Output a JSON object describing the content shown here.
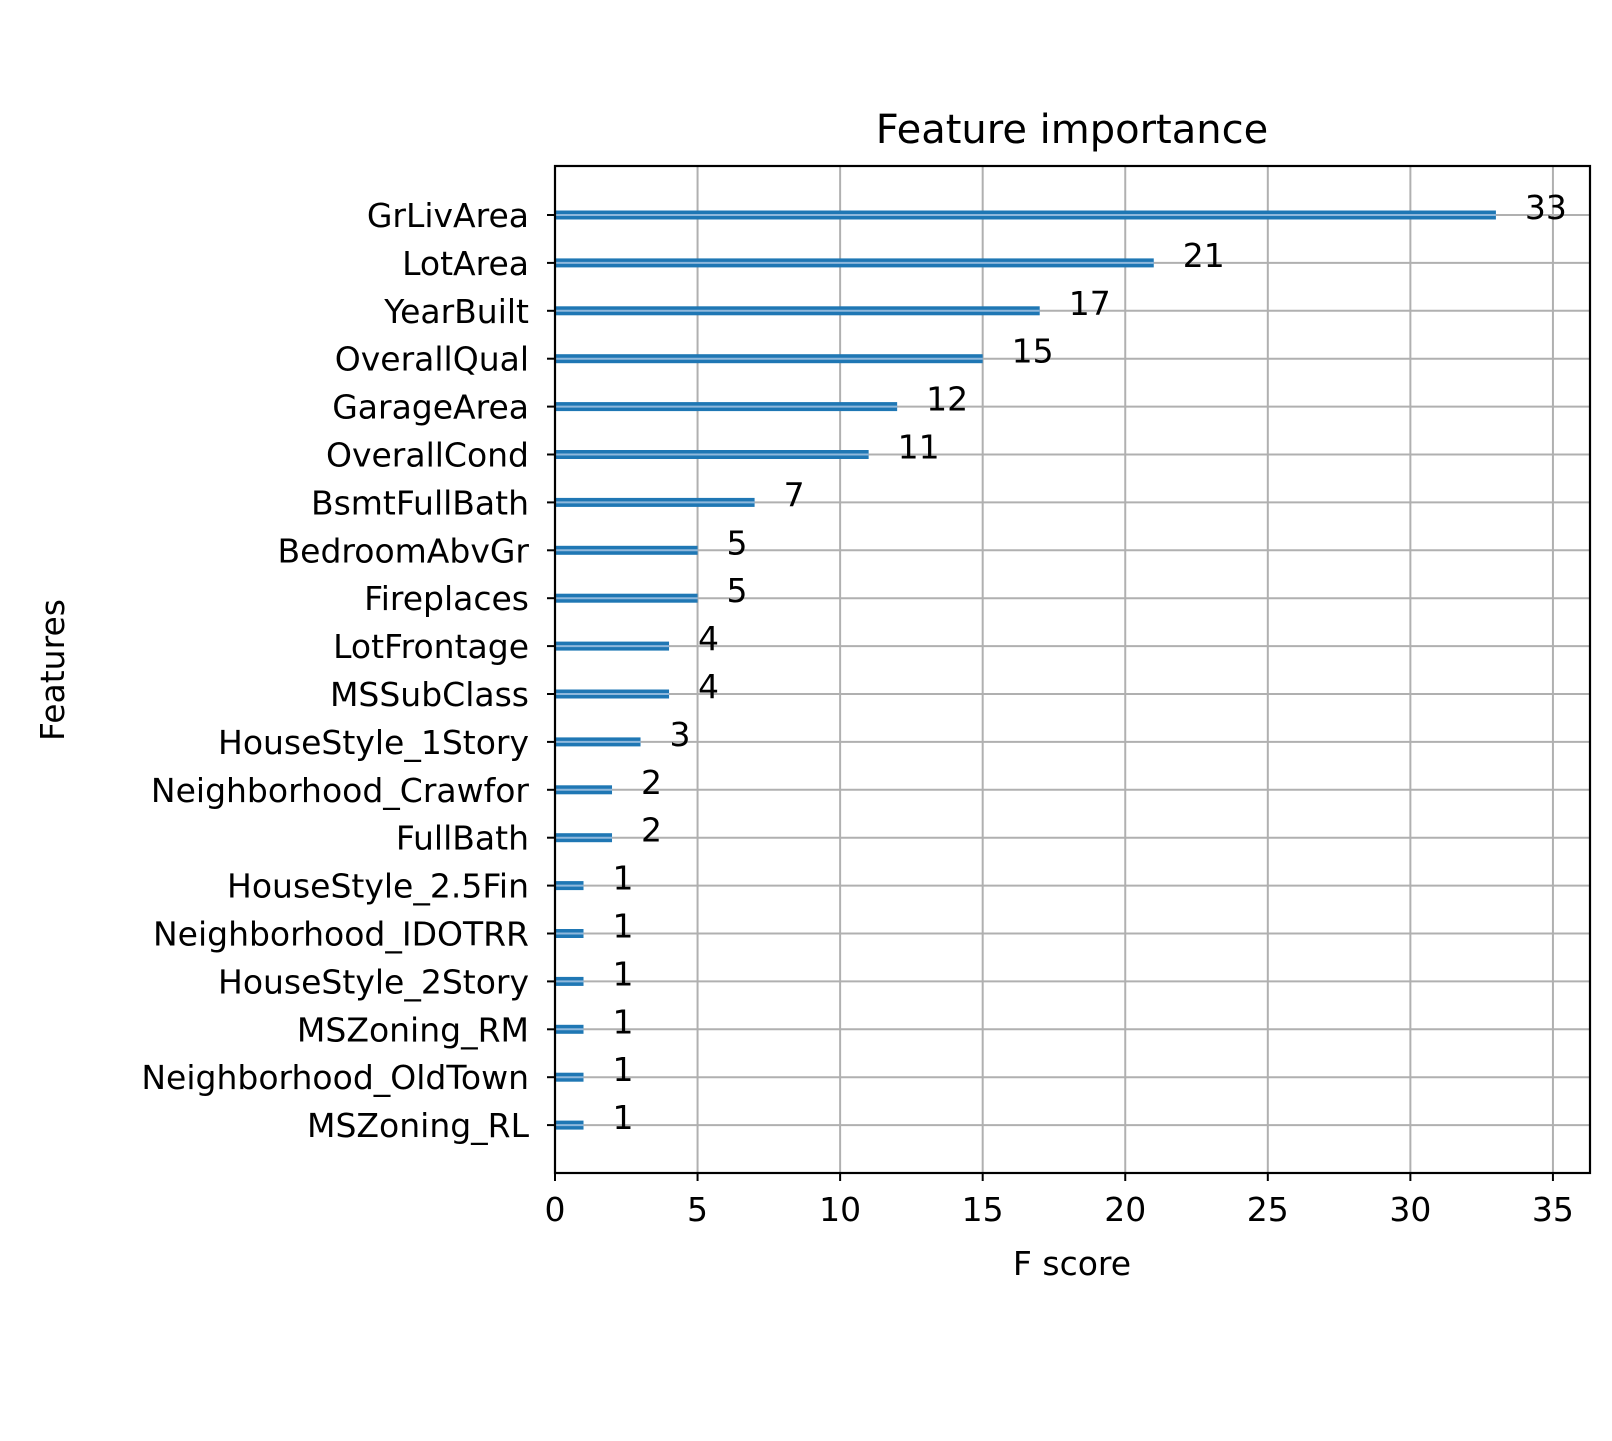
{
  "chart_data": {
    "type": "bar",
    "orientation": "horizontal",
    "title": "Feature importance",
    "xlabel": "F score",
    "ylabel": "Features",
    "categories": [
      "GrLivArea",
      "LotArea",
      "YearBuilt",
      "OverallQual",
      "GarageArea",
      "OverallCond",
      "BsmtFullBath",
      "BedroomAbvGr",
      "Fireplaces",
      "LotFrontage",
      "MSSubClass",
      "HouseStyle_1Story",
      "Neighborhood_Crawfor",
      "FullBath",
      "HouseStyle_2.5Fin",
      "Neighborhood_IDOTRR",
      "HouseStyle_2Story",
      "MSZoning_RM",
      "Neighborhood_OldTown",
      "MSZoning_RL"
    ],
    "values": [
      33,
      21,
      17,
      15,
      12,
      11,
      7,
      5,
      5,
      4,
      4,
      3,
      2,
      2,
      1,
      1,
      1,
      1,
      1,
      1
    ],
    "xlim": [
      0,
      36.3
    ],
    "xticks": [
      0,
      5,
      10,
      15,
      20,
      25,
      30,
      35
    ],
    "grid": true,
    "bar_color": "#1f77b4"
  }
}
